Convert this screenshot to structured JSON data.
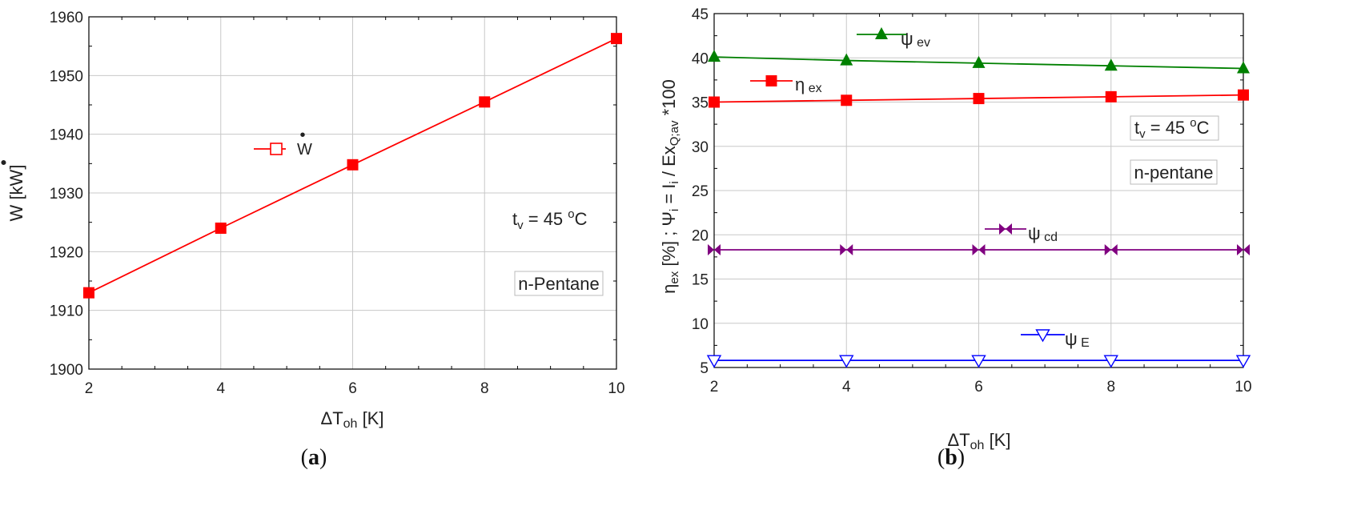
{
  "chart_data": [
    {
      "type": "line",
      "panel_label": "(a)",
      "caption": {
        "open": "(",
        "letter": "a",
        "close": ")"
      },
      "xlabel": {
        "prefix": "ΔT",
        "sub": "oh",
        "unit": "[K]"
      },
      "ylabel": {
        "symbol": "W",
        "dot": "•",
        "unit": "[kW]"
      },
      "xlim": [
        2,
        10
      ],
      "ylim": [
        1900,
        1960
      ],
      "xticks": [
        2,
        4,
        6,
        8,
        10
      ],
      "yticks": [
        1900,
        1910,
        1920,
        1930,
        1940,
        1950,
        1960
      ],
      "grid": true,
      "series": [
        {
          "name": "W",
          "color": "#ff0000",
          "marker": "square",
          "x": [
            2,
            4,
            6,
            8,
            10
          ],
          "y": [
            1913,
            1924,
            1934.8,
            1945.5,
            1956.3
          ]
        }
      ],
      "annotations": {
        "temp": {
          "base": "t",
          "sub": "v",
          "mid": " = 45 ",
          "sup": "o",
          "end": "C"
        },
        "fluid": "n-Pentane"
      }
    },
    {
      "type": "line",
      "panel_label": "(b)",
      "caption": {
        "open": "(",
        "letter": "b",
        "close": ")"
      },
      "xlabel": {
        "prefix": "ΔT",
        "sub": "oh",
        "unit": "[K]"
      },
      "ylabel": {
        "p1": "η",
        "s1": "ex",
        "p2": " [%] ; Ψ",
        "s2": "i",
        "p3": " = I",
        "s3": "i",
        "p4": " / Ex",
        "s4": "Q;av",
        "p5": " *100"
      },
      "xlim": [
        2,
        10
      ],
      "ylim": [
        5,
        45
      ],
      "xticks": [
        2,
        4,
        6,
        8,
        10
      ],
      "yticks": [
        5,
        10,
        15,
        20,
        25,
        30,
        35,
        40,
        45
      ],
      "grid": true,
      "series": [
        {
          "name": "ψ ev",
          "label_main": "ψ",
          "label_sub": "ev",
          "color": "#008000",
          "marker": "triangle-up",
          "x": [
            2,
            4,
            6,
            8,
            10
          ],
          "y": [
            40.1,
            39.7,
            39.4,
            39.1,
            38.8
          ]
        },
        {
          "name": "η ex",
          "label_main": "η",
          "label_sub": "ex",
          "color": "#ff0000",
          "marker": "square",
          "x": [
            2,
            4,
            6,
            8,
            10
          ],
          "y": [
            35.0,
            35.2,
            35.4,
            35.6,
            35.8
          ]
        },
        {
          "name": "ψ cd",
          "label_main": "ψ",
          "label_sub": "cd",
          "color": "#800080",
          "marker": "bowtie",
          "x": [
            2,
            4,
            6,
            8,
            10
          ],
          "y": [
            18.3,
            18.3,
            18.3,
            18.3,
            18.3
          ]
        },
        {
          "name": "ψ E",
          "label_main": "ψ",
          "label_sub": "E",
          "color": "#0000ff",
          "marker": "triangle-down",
          "x": [
            2,
            4,
            6,
            8,
            10
          ],
          "y": [
            5.8,
            5.8,
            5.8,
            5.8,
            5.8
          ]
        }
      ],
      "annotations": {
        "temp": {
          "base": "t",
          "sub": "v",
          "mid": " = 45 ",
          "sup": "o",
          "end": "C"
        },
        "fluid": "n-pentane"
      }
    }
  ]
}
